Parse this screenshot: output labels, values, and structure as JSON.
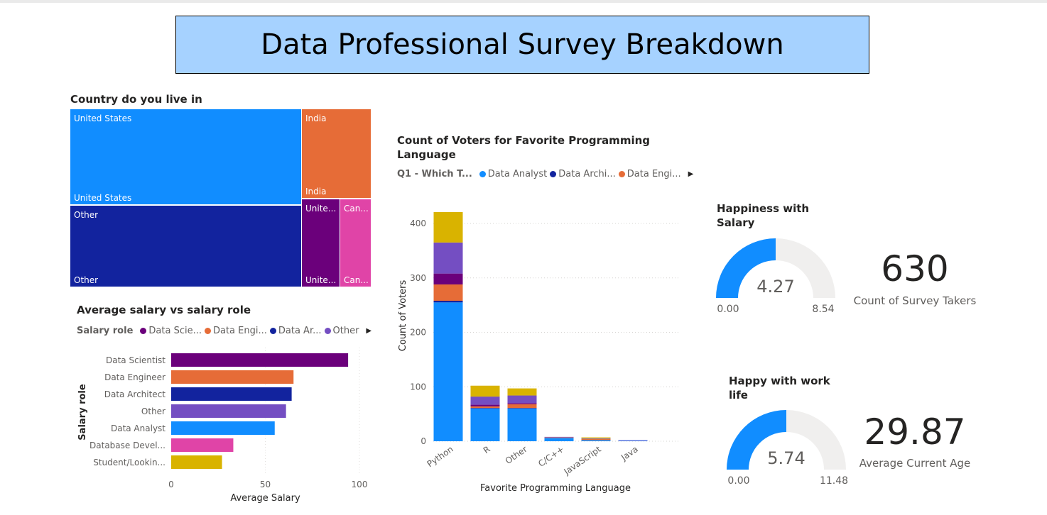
{
  "title": "Data Professional Survey Breakdown",
  "colors": {
    "blue": "#118dff",
    "navy": "#12239e",
    "orange": "#e66c37",
    "purple": "#6b007b",
    "magenta": "#e044a7",
    "lavender": "#744ec2",
    "gold": "#d9b300",
    "gauge_bg": "#f0efee"
  },
  "treemap": {
    "title": "Country do you live in",
    "tiles": [
      {
        "label_top": "United States",
        "label_bottom": "United States",
        "color": "#118dff"
      },
      {
        "label_top": "India",
        "label_bottom": "India",
        "color": "#e66c37"
      },
      {
        "label_top": "Other",
        "label_bottom": "Other",
        "color": "#12239e"
      },
      {
        "label_top": "Unite...",
        "label_bottom": "Unite...",
        "color": "#6b007b"
      },
      {
        "label_top": "Can...",
        "label_bottom": "Can...",
        "color": "#e044a7"
      }
    ]
  },
  "bar_chart": {
    "title": "Average salary vs salary role",
    "legend_title": "Salary role",
    "legend": [
      {
        "label": "Data Scie...",
        "color": "#6b007b"
      },
      {
        "label": "Data Engi...",
        "color": "#e66c37"
      },
      {
        "label": "Data Ar...",
        "color": "#12239e"
      },
      {
        "label": "Other",
        "color": "#744ec2"
      }
    ],
    "legend_arrow": "▶"
  },
  "column_chart": {
    "title_line1": "Count of Voters for Favorite Programming",
    "title_line2": "Language",
    "legend_title": "Q1 - Which T...",
    "legend": [
      {
        "label": "Data Analyst",
        "color": "#118dff"
      },
      {
        "label": "Data Archi...",
        "color": "#12239e"
      },
      {
        "label": "Data Engi...",
        "color": "#e66c37"
      }
    ],
    "legend_arrow": "▶"
  },
  "gauge1": {
    "title_line1": "Happiness with",
    "title_line2": "Salary",
    "value": "4.27",
    "min": "0.00",
    "max": "8.54",
    "fraction": 0.5
  },
  "gauge2": {
    "title_line1": "Happy with work",
    "title_line2": "life",
    "value": "5.74",
    "min": "0.00",
    "max": "11.48",
    "fraction": 0.5
  },
  "kpi1": {
    "value": "630",
    "label": "Count of Survey Takers"
  },
  "kpi2": {
    "value": "29.87",
    "label": "Average Current Age"
  },
  "chart_data": [
    {
      "type": "bar",
      "orientation": "horizontal",
      "title": "Average salary vs salary role",
      "xlabel": "Average Salary",
      "ylabel": "Salary role",
      "categories": [
        "Data Scientist",
        "Data Engineer",
        "Data Architect",
        "Other",
        "Data Analyst",
        "Database Devel...",
        "Student/Lookin..."
      ],
      "values": [
        94,
        65,
        64,
        61,
        55,
        33,
        27
      ],
      "colors": [
        "#6b007b",
        "#e66c37",
        "#12239e",
        "#744ec2",
        "#118dff",
        "#e044a7",
        "#d9b300"
      ],
      "xlim": [
        0,
        100
      ],
      "xticks": [
        "0",
        "50",
        "100"
      ]
    },
    {
      "type": "bar",
      "orientation": "vertical",
      "stacked": true,
      "title": "Count of Voters for Favorite Programming Language",
      "xlabel": "Favorite Programming Language",
      "ylabel": "Count of Voters",
      "categories": [
        "Python",
        "R",
        "Other",
        "C/C++",
        "JavaScript",
        "Java"
      ],
      "series": [
        {
          "name": "Data Analyst",
          "color": "#118dff",
          "values": [
            255,
            60,
            60,
            6,
            2,
            1
          ]
        },
        {
          "name": "Data Archi...",
          "color": "#12239e",
          "values": [
            3,
            1,
            1,
            0,
            0,
            0
          ]
        },
        {
          "name": "Data Engi...",
          "color": "#e66c37",
          "values": [
            30,
            3,
            7,
            1,
            2,
            0
          ]
        },
        {
          "color": "#6b007b",
          "values": [
            20,
            3,
            2,
            0,
            0,
            0
          ]
        },
        {
          "color": "#744ec2",
          "values": [
            57,
            15,
            14,
            1,
            1,
            1
          ]
        },
        {
          "color": "#d9b300",
          "values": [
            56,
            20,
            13,
            0,
            2,
            0
          ]
        }
      ],
      "ylim": [
        0,
        430
      ],
      "yticks": [
        "0",
        "100",
        "200",
        "300",
        "400"
      ]
    }
  ]
}
